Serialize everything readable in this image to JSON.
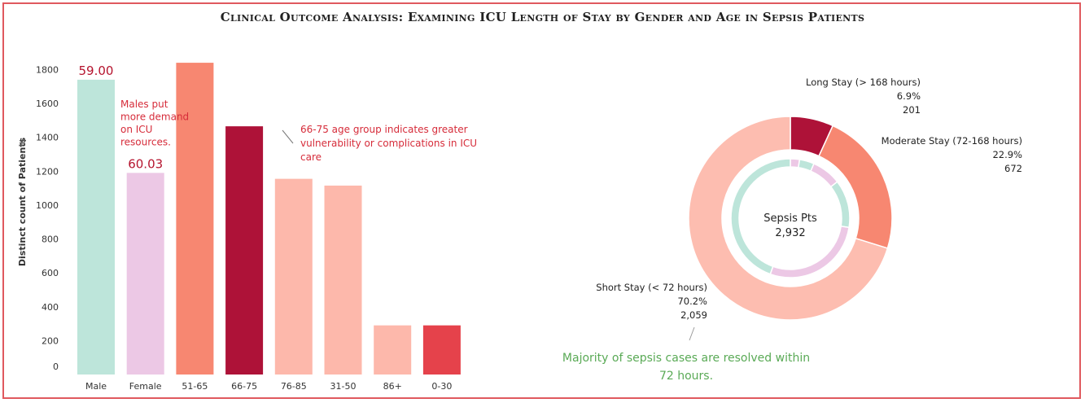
{
  "title": "Clinical Outcome Analysis: Examining ICU Length of Stay by Gender and Age in Sepsis Patients",
  "chart_data": [
    {
      "type": "bar",
      "ylabel": "Distinct count of Patients",
      "ylim": [
        0,
        1850
      ],
      "yticks": [
        0,
        200,
        400,
        600,
        800,
        1000,
        1200,
        1400,
        1600,
        1800
      ],
      "grid": false,
      "categories": [
        "Male",
        "Female",
        "51-65",
        "66-75",
        "76-85",
        "31-50",
        "86+",
        "0-30"
      ],
      "values": [
        1740,
        1190,
        1840,
        1465,
        1155,
        1115,
        290,
        290
      ],
      "colors": [
        "#bde5da",
        "#ecc8e5",
        "#f78771",
        "#ae1238",
        "#fdb8ab",
        "#fdb8ab",
        "#fdb8ab",
        "#e5424b"
      ],
      "value_labels": [
        {
          "category": "Male",
          "text": "59.00"
        },
        {
          "category": "Female",
          "text": "60.03"
        }
      ],
      "annotations": [
        {
          "lines": [
            "Males put",
            "more demand",
            "on ICU",
            "resources."
          ]
        },
        {
          "lines": [
            "66-75 age group  indicates greater",
            "vulnerability or complications in ICU",
            "care"
          ]
        }
      ]
    },
    {
      "type": "pie",
      "center_label": [
        "Sepsis Pts",
        "2,932"
      ],
      "outer_ring": [
        {
          "name": "Long Stay (> 168 hours)",
          "percent": "6.9%",
          "count": "201",
          "value": 201,
          "color": "#ae1238"
        },
        {
          "name": "Moderate Stay (72-168 hours)",
          "percent": "22.9%",
          "count": "672",
          "value": 672,
          "color": "#f78771"
        },
        {
          "name": "Short Stay (< 72 hours)",
          "percent": "70.2%",
          "count": "2,059",
          "value": 2059,
          "color": "#fdbdb0"
        }
      ],
      "inner_ring": [
        {
          "value": 2.5,
          "color": "#ecc8e5"
        },
        {
          "value": 4,
          "color": "#bde5da"
        },
        {
          "value": 8,
          "color": "#ecc8e5"
        },
        {
          "value": 13,
          "color": "#bde5da"
        },
        {
          "value": 28,
          "color": "#ecc8e5"
        },
        {
          "value": 44.5,
          "color": "#bde5da"
        }
      ],
      "annotation": [
        "Majority of sepsis cases are resolved within",
        "72 hours."
      ]
    }
  ]
}
